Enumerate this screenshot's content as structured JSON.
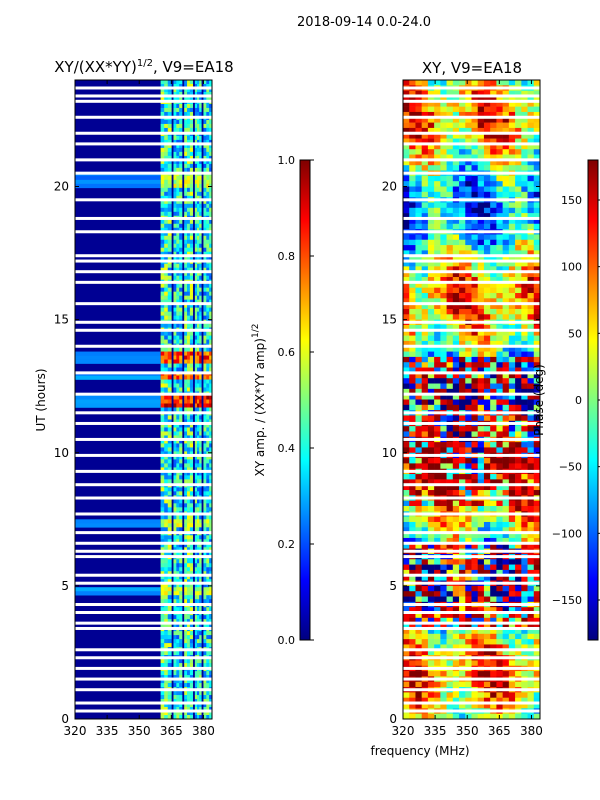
{
  "figure": {
    "suptitle": "2018-09-14 0.0-24.0",
    "xlabel": "frequency (MHz)",
    "colors": {
      "jet": [
        "#00007f",
        "#0000ff",
        "#007fff",
        "#00ffff",
        "#7fff7f",
        "#ffff00",
        "#ff7f00",
        "#ff0000",
        "#7f0000"
      ],
      "flag": "#ffffff"
    }
  },
  "chart_data": [
    {
      "type": "heatmap",
      "title_base": "XY/(XX*YY)",
      "title_exp": "1/2",
      "title_tail": ", V9=EA18",
      "xlim": [
        320,
        384
      ],
      "ylim": [
        0,
        24
      ],
      "xticks": [
        "320",
        "335",
        "350",
        "365",
        "380"
      ],
      "xtick_values": [
        320,
        335,
        350,
        365,
        380
      ],
      "yticks": [
        "0",
        "5",
        "10",
        "15",
        "20"
      ],
      "ytick_values": [
        0,
        5,
        10,
        15,
        20
      ],
      "ylabel": "UT (hours)",
      "colorbar": {
        "label_base": "XY amp. / (XX*YY amp)",
        "label_exp": "1/2",
        "range": [
          0.0,
          1.0
        ],
        "ticks": [
          "0.0",
          "0.2",
          "0.4",
          "0.6",
          "0.8",
          "1.0"
        ],
        "tick_values": [
          0.0,
          0.2,
          0.4,
          0.6,
          0.8,
          1.0
        ]
      },
      "background_value": 0.0,
      "active_bands": [
        {
          "from": 360,
          "to": 365,
          "value": 0.45
        },
        {
          "from": 366,
          "to": 370,
          "value": 0.4
        },
        {
          "from": 371,
          "to": 375,
          "value": 0.45
        },
        {
          "from": 376,
          "to": 379,
          "value": 0.4
        },
        {
          "from": 380,
          "to": 384,
          "value": 0.4
        }
      ],
      "hot_rows": [
        {
          "from": 13.3,
          "to": 13.8,
          "value": 0.85
        },
        {
          "from": 12.7,
          "to": 13.0,
          "value": 0.8
        },
        {
          "from": 11.7,
          "to": 12.1,
          "value": 0.9
        },
        {
          "from": 20.0,
          "to": 20.6,
          "value": 0.6
        },
        {
          "from": 7.2,
          "to": 7.5,
          "value": 0.6
        },
        {
          "from": 4.6,
          "to": 4.9,
          "value": 0.6
        }
      ],
      "flagged_ut": [
        0.3,
        0.6,
        1.1,
        1.5,
        1.9,
        2.3,
        2.6,
        3.4,
        3.6,
        4.0,
        4.3,
        5.1,
        5.4,
        6.1,
        6.3,
        6.6,
        7.0,
        7.7,
        8.3,
        8.8,
        9.3,
        9.9,
        10.5,
        11.1,
        11.5,
        12.2,
        13.0,
        14.0,
        14.6,
        14.9,
        15.6,
        16.4,
        16.8,
        17.2,
        17.4,
        18.3,
        18.8,
        19.5,
        20.5,
        21.0,
        21.6,
        22.0,
        22.6,
        23.2,
        23.4,
        23.7
      ]
    },
    {
      "type": "heatmap",
      "title": "XY, V9=EA18",
      "xlim": [
        320,
        384
      ],
      "ylim": [
        0,
        24
      ],
      "xticks": [
        "320",
        "335",
        "350",
        "365",
        "380"
      ],
      "xtick_values": [
        320,
        335,
        350,
        365,
        380
      ],
      "yticks": [
        "0",
        "5",
        "10",
        "15",
        "20"
      ],
      "ytick_values": [
        0,
        5,
        10,
        15,
        20
      ],
      "colorbar": {
        "label": "Phase (deg)",
        "range": [
          -180,
          180
        ],
        "ticks": [
          "−150",
          "−100",
          "−50",
          "0",
          "50",
          "100",
          "150"
        ],
        "tick_values": [
          -150,
          -100,
          -50,
          0,
          50,
          100,
          150
        ]
      },
      "noisy_ut_ranges": [
        [
          8,
          13.5
        ],
        [
          3.5,
          6.5
        ]
      ],
      "flagged_ut": [
        0.3,
        0.6,
        1.1,
        1.5,
        1.9,
        2.3,
        2.6,
        3.4,
        3.6,
        4.0,
        4.3,
        5.1,
        5.4,
        6.1,
        6.3,
        6.6,
        7.0,
        7.7,
        8.3,
        8.8,
        9.3,
        9.9,
        10.5,
        11.1,
        11.5,
        12.2,
        13.0,
        14.0,
        14.6,
        14.9,
        15.6,
        16.4,
        16.8,
        17.2,
        17.4,
        18.3,
        18.8,
        19.5,
        20.5,
        21.0,
        21.6,
        22.0,
        22.6,
        23.2,
        23.4,
        23.7
      ]
    }
  ]
}
